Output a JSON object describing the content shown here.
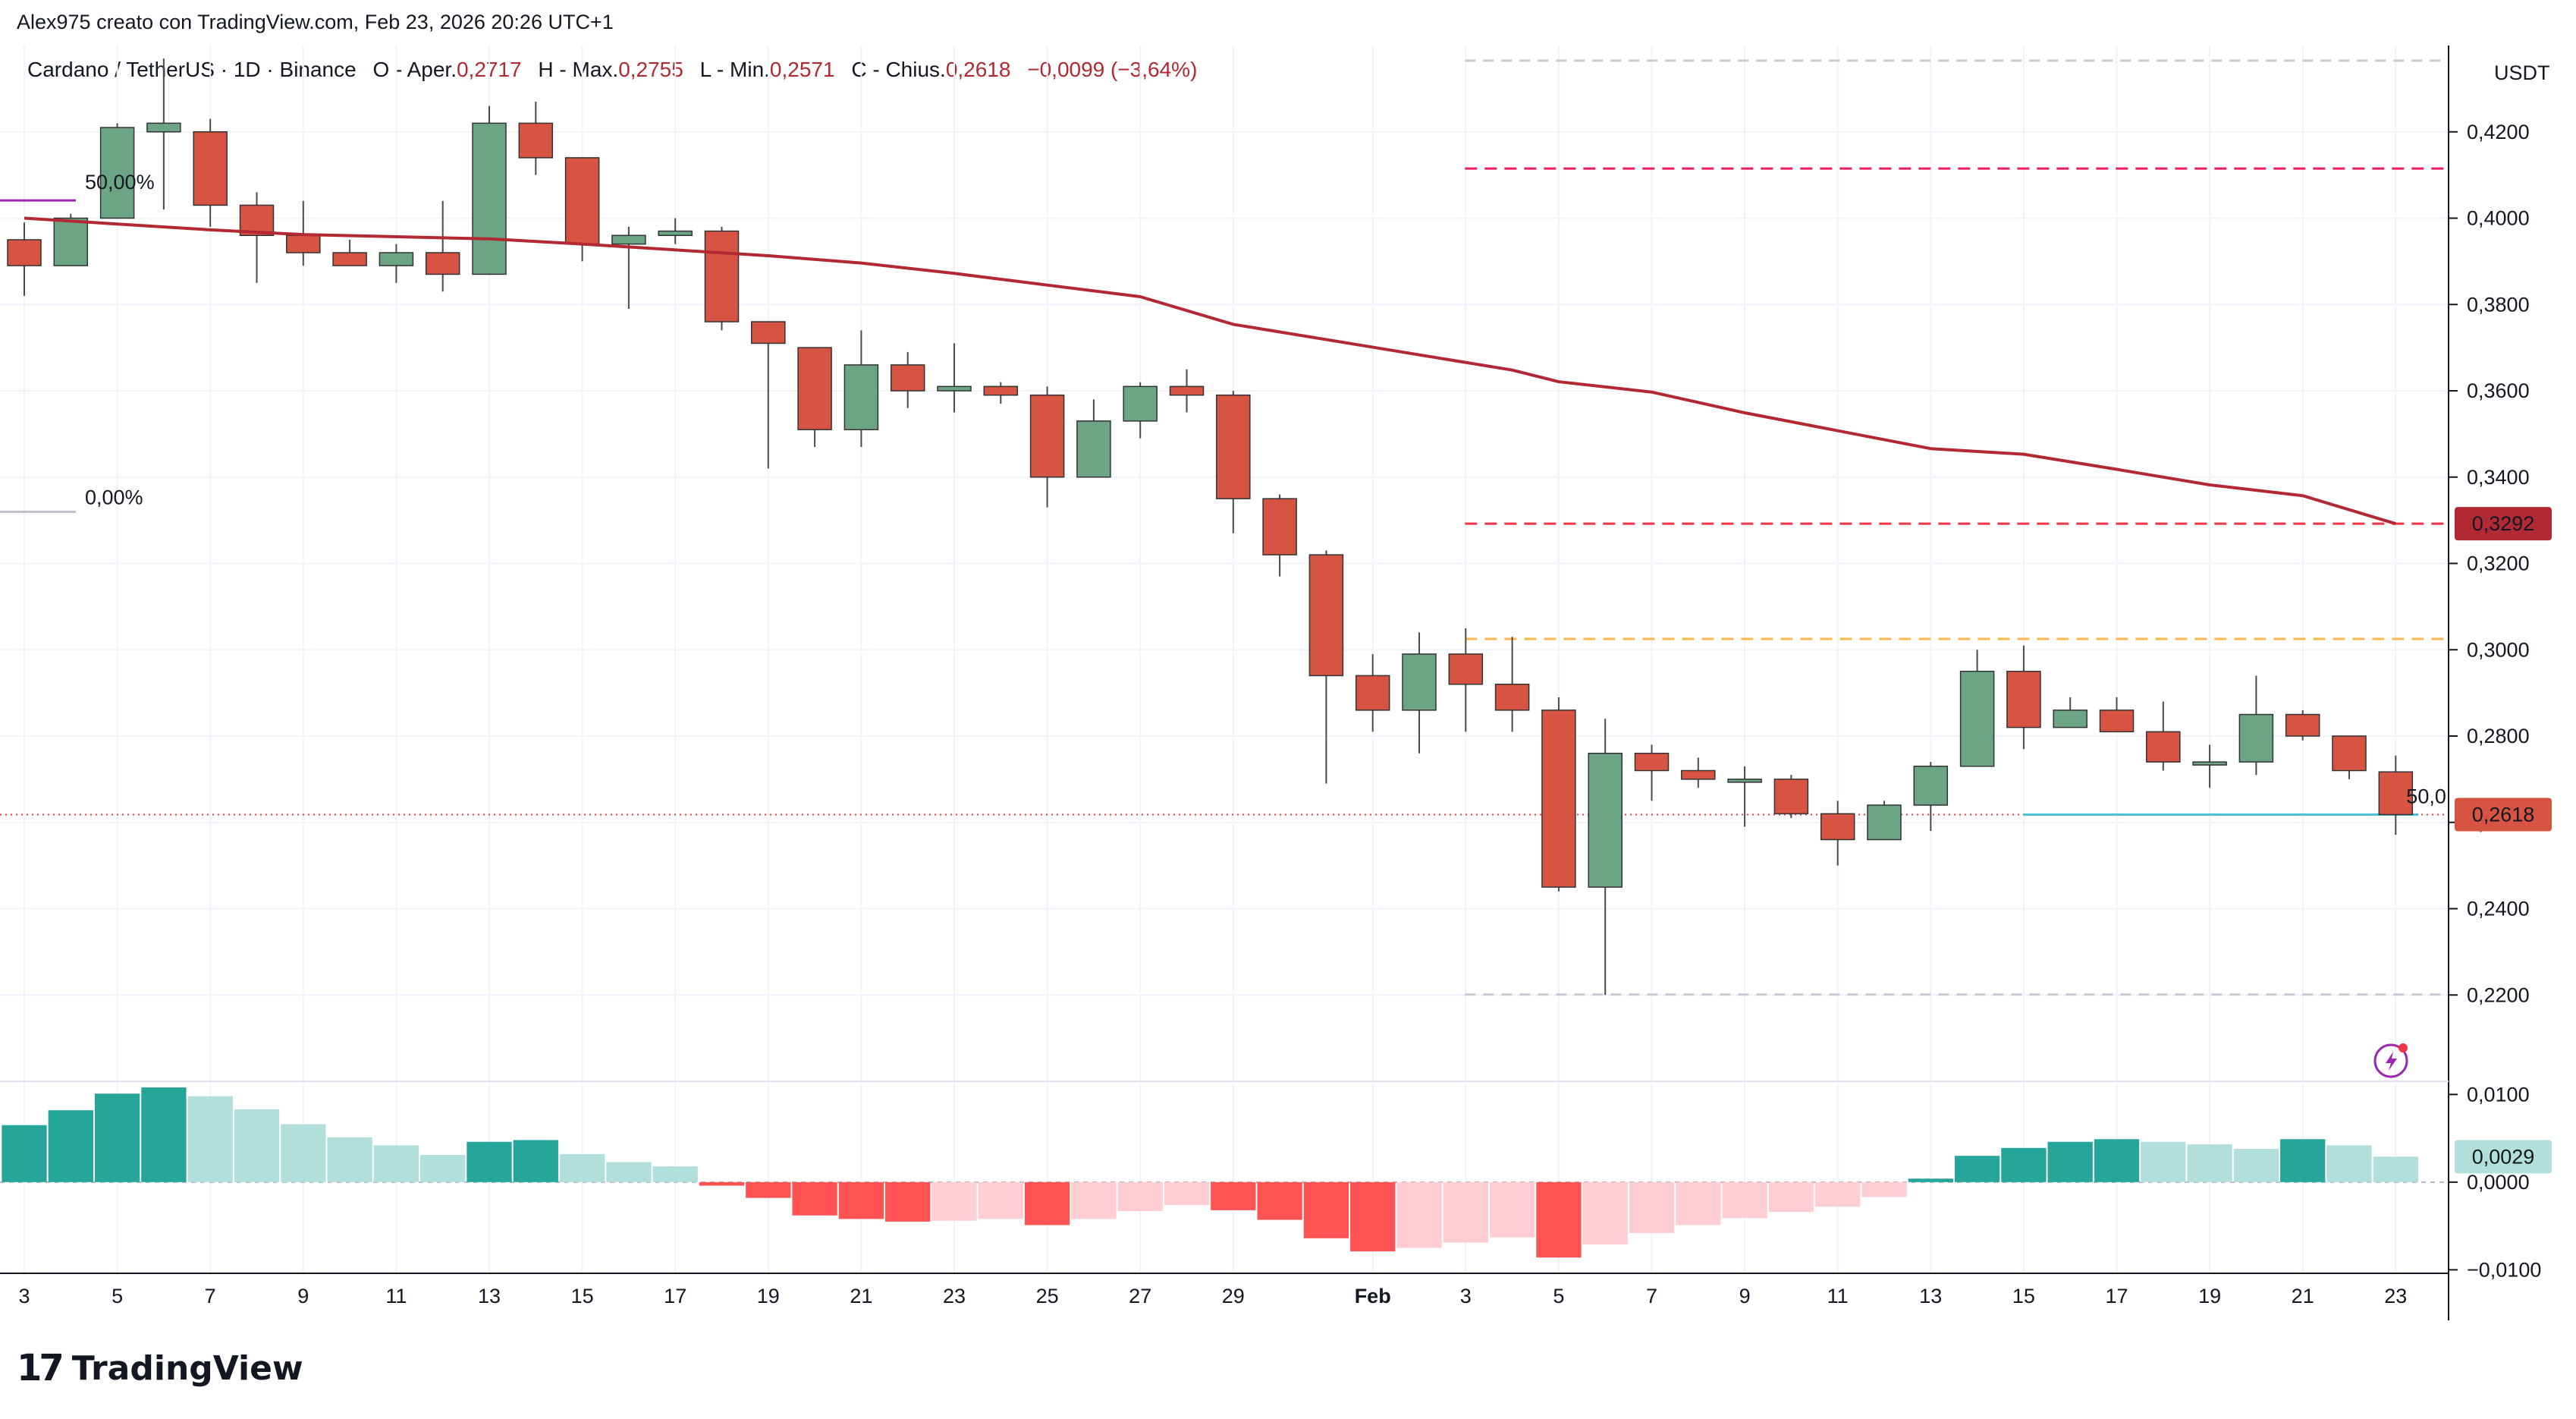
{
  "header": {
    "attribution": "Alex975 creato con TradingView.com, Feb 23, 2026 20:26 UTC+1"
  },
  "legend": {
    "symbol": "Cardano / TetherUS · 1D · Binance",
    "open_label": "O - Aper.",
    "open": "0,2717",
    "high_label": "H - Max.",
    "high": "0,2755",
    "low_label": "L - Min.",
    "low": "0,2571",
    "close_label": "C - Chius.",
    "close": "0,2618",
    "change": "−0,0099 (−3,64%)"
  },
  "currency": "USDT",
  "footer": {
    "brand": "TradingView"
  },
  "colors": {
    "up": "#6ba583",
    "down": "#d75442",
    "ma": "#b22833",
    "hist_up_strong": "#26a69a",
    "hist_up_weak": "#b2dfdb",
    "hist_down_strong": "#ff5252",
    "hist_down_weak": "#ffcdd2",
    "line_magenta": "#e91e63",
    "line_red": "#f23645",
    "line_orange": "#ffb74d",
    "line_cyan": "#4dc1d8",
    "line_gray": "#c9ccd3",
    "fib_text": "#9c27b0"
  },
  "chart_data": {
    "type": "candlestick",
    "symbol": "Cardano / TetherUS",
    "interval": "1D",
    "exchange": "Binance",
    "ylim": [
      0.2,
      0.44
    ],
    "yticks": [
      "0,2200",
      "0,2400",
      "0,2600",
      "0,2800",
      "0,3000",
      "0,3200",
      "0,3400",
      "0,3600",
      "0,3800",
      "0,4000",
      "0,4200"
    ],
    "xticks": [
      {
        "i": 0,
        "label": "3"
      },
      {
        "i": 2,
        "label": "5"
      },
      {
        "i": 4,
        "label": "7"
      },
      {
        "i": 6,
        "label": "9"
      },
      {
        "i": 8,
        "label": "11"
      },
      {
        "i": 10,
        "label": "13"
      },
      {
        "i": 12,
        "label": "15"
      },
      {
        "i": 14,
        "label": "17"
      },
      {
        "i": 16,
        "label": "19"
      },
      {
        "i": 18,
        "label": "21"
      },
      {
        "i": 20,
        "label": "23"
      },
      {
        "i": 22,
        "label": "25"
      },
      {
        "i": 24,
        "label": "27"
      },
      {
        "i": 26,
        "label": "29"
      },
      {
        "i": 29,
        "label": "Feb"
      },
      {
        "i": 31,
        "label": "3"
      },
      {
        "i": 33,
        "label": "5"
      },
      {
        "i": 35,
        "label": "7"
      },
      {
        "i": 37,
        "label": "9"
      },
      {
        "i": 39,
        "label": "11"
      },
      {
        "i": 41,
        "label": "13"
      },
      {
        "i": 43,
        "label": "15"
      },
      {
        "i": 45,
        "label": "17"
      },
      {
        "i": 47,
        "label": "19"
      },
      {
        "i": 49,
        "label": "21"
      },
      {
        "i": 51,
        "label": "23"
      }
    ],
    "candles": [
      {
        "o": 0.395,
        "h": 0.399,
        "l": 0.382,
        "c": 0.389
      },
      {
        "o": 0.389,
        "h": 0.401,
        "l": 0.389,
        "c": 0.4
      },
      {
        "o": 0.4,
        "h": 0.422,
        "l": 0.4,
        "c": 0.421
      },
      {
        "o": 0.42,
        "h": 0.437,
        "l": 0.402,
        "c": 0.422
      },
      {
        "o": 0.42,
        "h": 0.423,
        "l": 0.398,
        "c": 0.403
      },
      {
        "o": 0.403,
        "h": 0.406,
        "l": 0.385,
        "c": 0.396
      },
      {
        "o": 0.396,
        "h": 0.404,
        "l": 0.389,
        "c": 0.392
      },
      {
        "o": 0.392,
        "h": 0.395,
        "l": 0.389,
        "c": 0.389
      },
      {
        "o": 0.389,
        "h": 0.394,
        "l": 0.385,
        "c": 0.392
      },
      {
        "o": 0.392,
        "h": 0.404,
        "l": 0.383,
        "c": 0.387
      },
      {
        "o": 0.387,
        "h": 0.426,
        "l": 0.387,
        "c": 0.422
      },
      {
        "o": 0.422,
        "h": 0.427,
        "l": 0.41,
        "c": 0.414
      },
      {
        "o": 0.414,
        "h": 0.414,
        "l": 0.39,
        "c": 0.394
      },
      {
        "o": 0.394,
        "h": 0.398,
        "l": 0.379,
        "c": 0.396
      },
      {
        "o": 0.396,
        "h": 0.4,
        "l": 0.394,
        "c": 0.397
      },
      {
        "o": 0.397,
        "h": 0.398,
        "l": 0.374,
        "c": 0.376
      },
      {
        "o": 0.376,
        "h": 0.376,
        "l": 0.342,
        "c": 0.371
      },
      {
        "o": 0.37,
        "h": 0.37,
        "l": 0.347,
        "c": 0.351
      },
      {
        "o": 0.351,
        "h": 0.374,
        "l": 0.347,
        "c": 0.366
      },
      {
        "o": 0.366,
        "h": 0.369,
        "l": 0.356,
        "c": 0.36
      },
      {
        "o": 0.36,
        "h": 0.371,
        "l": 0.355,
        "c": 0.361
      },
      {
        "o": 0.361,
        "h": 0.362,
        "l": 0.357,
        "c": 0.359
      },
      {
        "o": 0.359,
        "h": 0.361,
        "l": 0.333,
        "c": 0.34
      },
      {
        "o": 0.34,
        "h": 0.358,
        "l": 0.34,
        "c": 0.353
      },
      {
        "o": 0.353,
        "h": 0.362,
        "l": 0.349,
        "c": 0.361
      },
      {
        "o": 0.361,
        "h": 0.365,
        "l": 0.355,
        "c": 0.359
      },
      {
        "o": 0.359,
        "h": 0.36,
        "l": 0.327,
        "c": 0.335
      },
      {
        "o": 0.335,
        "h": 0.336,
        "l": 0.317,
        "c": 0.322
      },
      {
        "o": 0.322,
        "h": 0.323,
        "l": 0.269,
        "c": 0.294
      },
      {
        "o": 0.294,
        "h": 0.299,
        "l": 0.281,
        "c": 0.286
      },
      {
        "o": 0.286,
        "h": 0.304,
        "l": 0.276,
        "c": 0.299
      },
      {
        "o": 0.299,
        "h": 0.305,
        "l": 0.281,
        "c": 0.292
      },
      {
        "o": 0.292,
        "h": 0.303,
        "l": 0.281,
        "c": 0.286
      },
      {
        "o": 0.286,
        "h": 0.289,
        "l": 0.244,
        "c": 0.245
      },
      {
        "o": 0.245,
        "h": 0.284,
        "l": 0.22,
        "c": 0.276
      },
      {
        "o": 0.276,
        "h": 0.278,
        "l": 0.265,
        "c": 0.272
      },
      {
        "o": 0.272,
        "h": 0.275,
        "l": 0.268,
        "c": 0.27
      },
      {
        "o": 0.27,
        "h": 0.273,
        "l": 0.259,
        "c": 0.27
      },
      {
        "o": 0.27,
        "h": 0.271,
        "l": 0.261,
        "c": 0.262
      },
      {
        "o": 0.262,
        "h": 0.265,
        "l": 0.25,
        "c": 0.256
      },
      {
        "o": 0.256,
        "h": 0.265,
        "l": 0.256,
        "c": 0.264
      },
      {
        "o": 0.264,
        "h": 0.274,
        "l": 0.258,
        "c": 0.273
      },
      {
        "o": 0.273,
        "h": 0.3,
        "l": 0.273,
        "c": 0.295
      },
      {
        "o": 0.295,
        "h": 0.301,
        "l": 0.277,
        "c": 0.282
      },
      {
        "o": 0.282,
        "h": 0.289,
        "l": 0.282,
        "c": 0.286
      },
      {
        "o": 0.286,
        "h": 0.289,
        "l": 0.281,
        "c": 0.281
      },
      {
        "o": 0.281,
        "h": 0.288,
        "l": 0.272,
        "c": 0.274
      },
      {
        "o": 0.274,
        "h": 0.278,
        "l": 0.268,
        "c": 0.274
      },
      {
        "o": 0.274,
        "h": 0.294,
        "l": 0.271,
        "c": 0.285
      },
      {
        "o": 0.285,
        "h": 0.286,
        "l": 0.279,
        "c": 0.28
      },
      {
        "o": 0.28,
        "h": 0.28,
        "l": 0.27,
        "c": 0.272
      },
      {
        "o": 0.2717,
        "h": 0.2755,
        "l": 0.2571,
        "c": 0.2618
      }
    ],
    "ma": [
      {
        "i": 0,
        "v": 0.4
      },
      {
        "i": 4,
        "v": 0.3973
      },
      {
        "i": 6,
        "v": 0.3962
      },
      {
        "i": 10,
        "v": 0.3952
      },
      {
        "i": 12,
        "v": 0.394
      },
      {
        "i": 16,
        "v": 0.3913
      },
      {
        "i": 18,
        "v": 0.3896
      },
      {
        "i": 20,
        "v": 0.3872
      },
      {
        "i": 24,
        "v": 0.3818
      },
      {
        "i": 26,
        "v": 0.3754
      },
      {
        "i": 29,
        "v": 0.3701
      },
      {
        "i": 32,
        "v": 0.3648
      },
      {
        "i": 33,
        "v": 0.3621
      },
      {
        "i": 35,
        "v": 0.3597
      },
      {
        "i": 37,
        "v": 0.3549
      },
      {
        "i": 41,
        "v": 0.3466
      },
      {
        "i": 43,
        "v": 0.3453
      },
      {
        "i": 45,
        "v": 0.3418
      },
      {
        "i": 47,
        "v": 0.3382
      },
      {
        "i": 49,
        "v": 0.3357
      },
      {
        "i": 51,
        "v": 0.3292
      }
    ],
    "levels": [
      {
        "price": 0.4365,
        "style": "gray",
        "from": 31
      },
      {
        "price": 0.4115,
        "style": "magenta",
        "from": 31
      },
      {
        "price": 0.3292,
        "style": "red",
        "from": 31
      },
      {
        "price": 0.3025,
        "style": "orange",
        "from": 31
      },
      {
        "price": 0.2201,
        "style": "gray",
        "from": 31
      }
    ],
    "fib_top": {
      "text": "50,00%",
      "price": 0.4085
    },
    "fib_bottom": {
      "text": "0,00%",
      "price": 0.3355
    },
    "cyan_line": {
      "price": 0.2618,
      "from": 43,
      "to": 51,
      "text": "50,0"
    },
    "price_label_ma": "0,3292",
    "price_label_last": "0,2618",
    "histogram": {
      "ylim": [
        -0.0104,
        0.0115
      ],
      "yticks": [
        "0,0100",
        "0,0000",
        "−0,0100"
      ],
      "last_label": "0,0029",
      "values": [
        0.0065,
        0.0082,
        0.0101,
        0.0108,
        0.0098,
        0.0083,
        0.0066,
        0.0051,
        0.0042,
        0.0031,
        0.0046,
        0.0048,
        0.0032,
        0.0023,
        0.0018,
        -0.0004,
        -0.0018,
        -0.0038,
        -0.0042,
        -0.0045,
        -0.0044,
        -0.0042,
        -0.0049,
        -0.0042,
        -0.0033,
        -0.0026,
        -0.0032,
        -0.0043,
        -0.0064,
        -0.0079,
        -0.0075,
        -0.0069,
        -0.0063,
        -0.0086,
        -0.0071,
        -0.0058,
        -0.0049,
        -0.0041,
        -0.0034,
        -0.0028,
        -0.0017,
        0.0004,
        0.003,
        0.0039,
        0.0046,
        0.0049,
        0.0046,
        0.0043,
        0.0038,
        0.0049,
        0.0042,
        0.0029
      ]
    }
  }
}
